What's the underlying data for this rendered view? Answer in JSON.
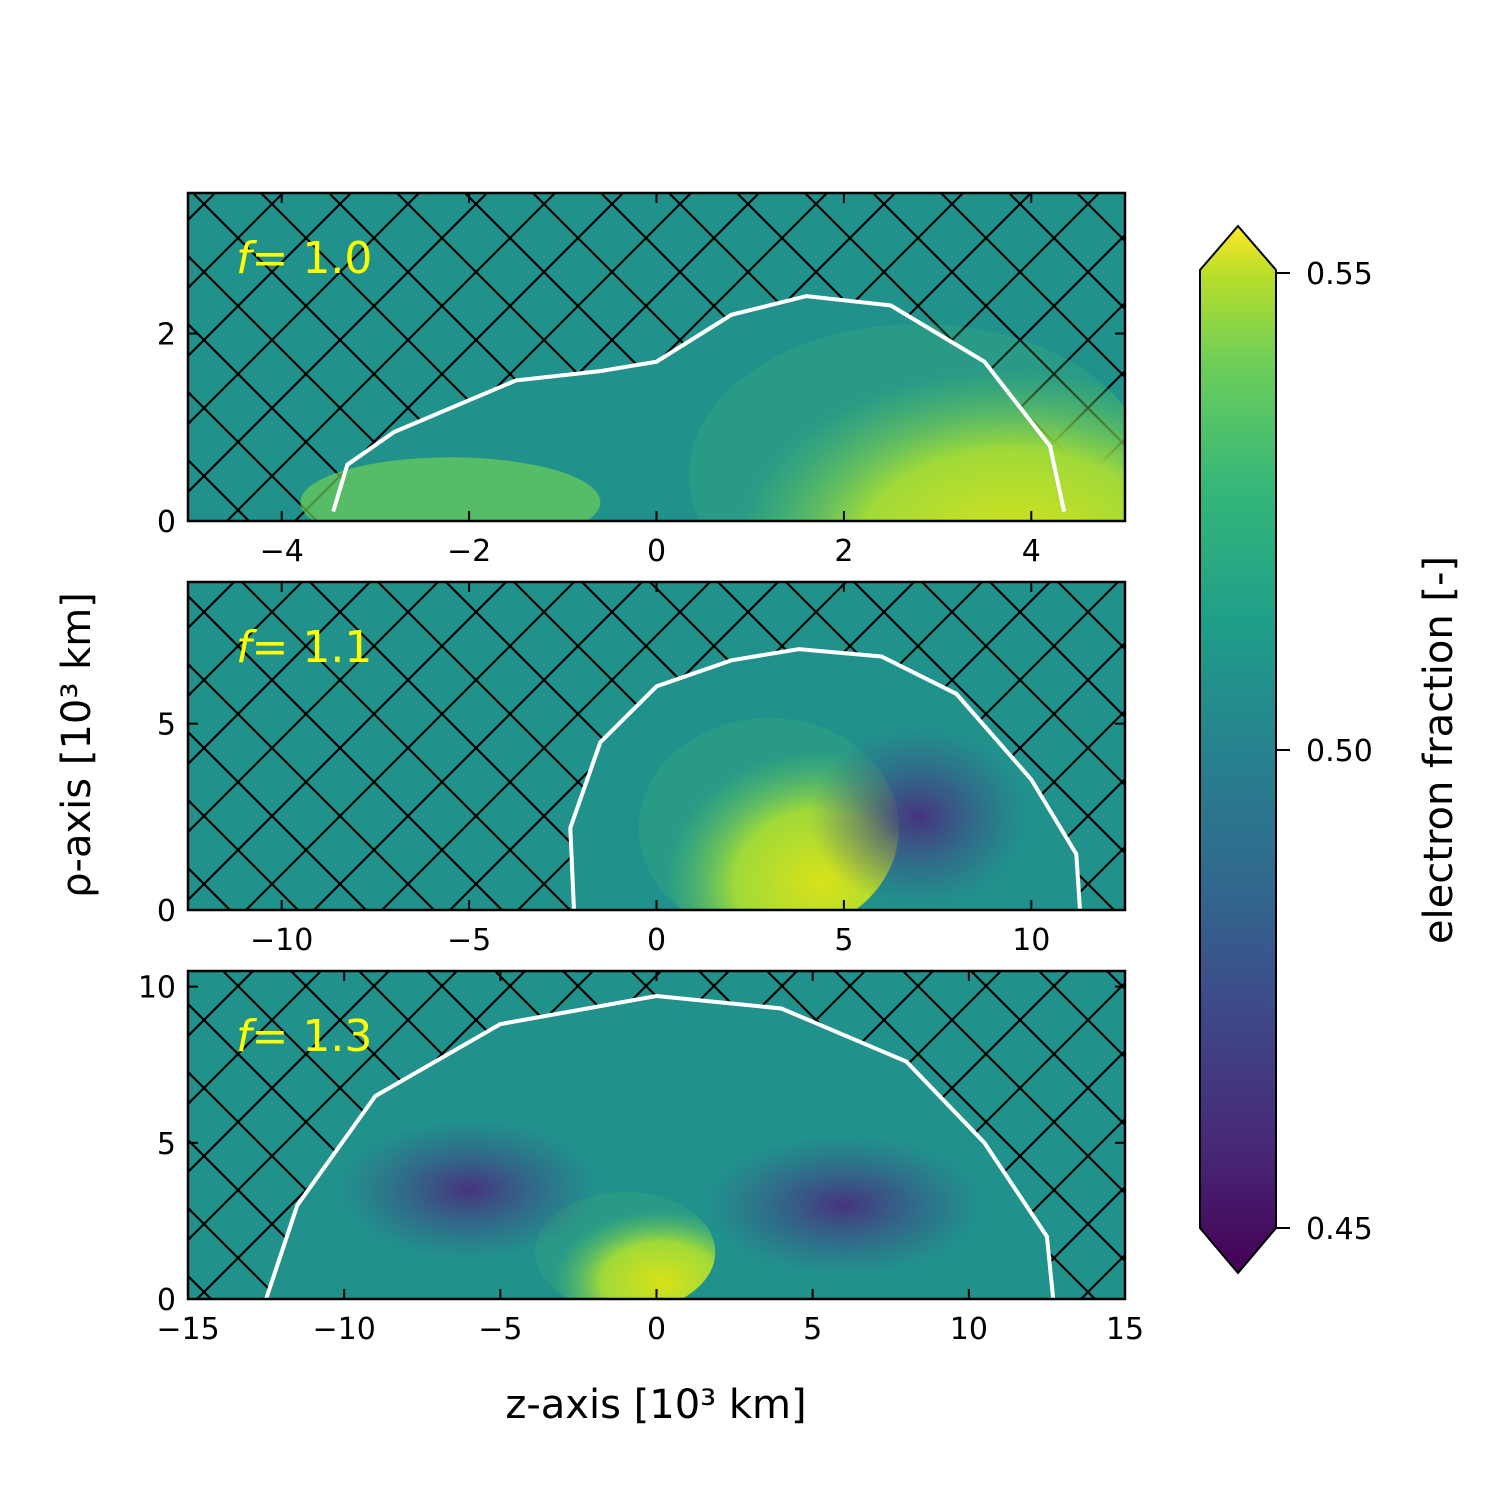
{
  "chart_data": {
    "type": "heatmap",
    "xlabel": "z-axis [10³ km]",
    "ylabel": "ρ-axis [10³ km]",
    "colorbar": {
      "label": "electron fraction [-]",
      "range": [
        0.45,
        0.55
      ],
      "ticks": [
        "0.45",
        "0.50",
        "0.55"
      ],
      "colormap": "viridis",
      "extend": "both"
    },
    "background_color": "#21918c",
    "hatch": "diagonal cross-hatch outside shock",
    "shock_contour_color": "#ffffff",
    "inner_contour_color": "#000000",
    "panels": [
      {
        "label": "f = 1.0",
        "label_f": "f",
        "label_value": "= 1.0",
        "xlim": [
          -5,
          5
        ],
        "ylim": [
          0,
          3.5
        ],
        "xticks": [
          -4,
          -2,
          0,
          2,
          4
        ],
        "xtick_labels": [
          "−4",
          "−2",
          "0",
          "2",
          "4"
        ],
        "yticks": [
          0,
          2
        ],
        "ytick_labels": [
          "0",
          "2"
        ],
        "shock_front": [
          [
            -3.45,
            0.1
          ],
          [
            -3.3,
            0.6
          ],
          [
            -2.8,
            0.95
          ],
          [
            -1.5,
            1.5
          ],
          [
            -0.6,
            1.6
          ],
          [
            0,
            1.7
          ],
          [
            0.8,
            2.2
          ],
          [
            1.6,
            2.4
          ],
          [
            2.5,
            2.3
          ],
          [
            3.5,
            1.7
          ],
          [
            4.2,
            0.8
          ],
          [
            4.35,
            0.1
          ]
        ]
      },
      {
        "label": "f = 1.1",
        "label_f": "f",
        "label_value": "= 1.1",
        "xlim": [
          -12.5,
          12.5
        ],
        "ylim": [
          0,
          8.8
        ],
        "xticks": [
          -10,
          -5,
          0,
          5,
          10
        ],
        "xtick_labels": [
          "−10",
          "−5",
          "0",
          "5",
          "10"
        ],
        "yticks": [
          0,
          5
        ],
        "ytick_labels": [
          "0",
          "5"
        ],
        "shock_front": [
          [
            -2.2,
            0
          ],
          [
            -2.3,
            2.2
          ],
          [
            -1.5,
            4.5
          ],
          [
            0,
            6.0
          ],
          [
            2,
            6.7
          ],
          [
            3.8,
            7.0
          ],
          [
            6,
            6.8
          ],
          [
            8,
            5.8
          ],
          [
            10,
            3.5
          ],
          [
            11.2,
            1.5
          ],
          [
            11.3,
            0
          ]
        ]
      },
      {
        "label": "f = 1.3",
        "label_f": "f",
        "label_value": "= 1.3",
        "xlim": [
          -15,
          15
        ],
        "ylim": [
          0,
          10.5
        ],
        "xticks": [
          -15,
          -10,
          -5,
          0,
          5,
          10,
          15
        ],
        "xtick_labels": [
          "−15",
          "−10",
          "−5",
          "0",
          "5",
          "10",
          "15"
        ],
        "yticks": [
          0,
          5,
          10
        ],
        "ytick_labels": [
          "0",
          "5",
          "10"
        ],
        "shock_front": [
          [
            -12.5,
            0
          ],
          [
            -11.5,
            3
          ],
          [
            -9,
            6.5
          ],
          [
            -5,
            8.8
          ],
          [
            0,
            9.7
          ],
          [
            4,
            9.3
          ],
          [
            8,
            7.6
          ],
          [
            10.5,
            5
          ],
          [
            12.5,
            2
          ],
          [
            12.7,
            0
          ]
        ]
      }
    ]
  }
}
